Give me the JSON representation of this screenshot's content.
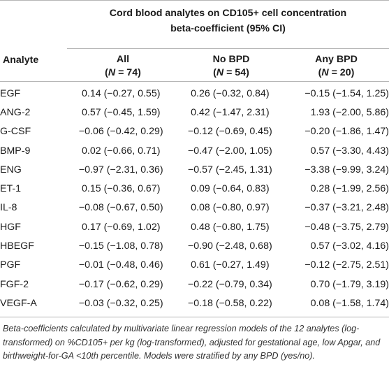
{
  "table": {
    "spanning_header_line1": "Cord blood analytes on CD105+ cell concentration",
    "spanning_header_line2": "beta-coefficient (95% CI)",
    "col_analyte": "Analyte",
    "groups": [
      {
        "label": "All",
        "n_prefix": "(",
        "n_var": "N",
        "n_rest": " = 74)"
      },
      {
        "label": "No BPD",
        "n_prefix": "(",
        "n_var": "N",
        "n_rest": " = 54)"
      },
      {
        "label": "Any BPD",
        "n_prefix": "(",
        "n_var": "N",
        "n_rest": " = 20)"
      }
    ],
    "rows": [
      {
        "analyte": "EGF",
        "all": "0.14 (−0.27, 0.55)",
        "no_bpd": "0.26 (−0.32, 0.84)",
        "any_bpd": "−0.15 (−1.54, 1.25)"
      },
      {
        "analyte": "ANG-2",
        "all": "0.57 (−0.45, 1.59)",
        "no_bpd": "0.42 (−1.47, 2.31)",
        "any_bpd": "1.93 (−2.00, 5.86)"
      },
      {
        "analyte": "G-CSF",
        "all": "−0.06 (−0.42, 0.29)",
        "no_bpd": "−0.12 (−0.69, 0.45)",
        "any_bpd": "−0.20 (−1.86, 1.47)"
      },
      {
        "analyte": "BMP-9",
        "all": "0.02 (−0.66, 0.71)",
        "no_bpd": "−0.47 (−2.00, 1.05)",
        "any_bpd": "0.57 (−3.30, 4.43)"
      },
      {
        "analyte": "ENG",
        "all": "−0.97 (−2.31, 0.36)",
        "no_bpd": "−0.57 (−2.45, 1.31)",
        "any_bpd": "−3.38 (−9.99, 3.24)"
      },
      {
        "analyte": "ET-1",
        "all": "0.15 (−0.36, 0.67)",
        "no_bpd": "0.09 (−0.64, 0.83)",
        "any_bpd": "0.28 (−1.99, 2.56)"
      },
      {
        "analyte": "IL-8",
        "all": "−0.08 (−0.67, 0.50)",
        "no_bpd": "0.08 (−0.80, 0.97)",
        "any_bpd": "−0.37 (−3.21, 2.48)"
      },
      {
        "analyte": "HGF",
        "all": "0.17 (−0.69, 1.02)",
        "no_bpd": "0.48 (−0.80, 1.75)",
        "any_bpd": "−0.48 (−3.75, 2.79)"
      },
      {
        "analyte": "HBEGF",
        "all": "−0.15 (−1.08, 0.78)",
        "no_bpd": "−0.90 (−2.48, 0.68)",
        "any_bpd": "0.57 (−3.02, 4.16)"
      },
      {
        "analyte": "PGF",
        "all": "−0.01 (−0.48, 0.46)",
        "no_bpd": "0.61 (−0.27, 1.49)",
        "any_bpd": "−0.12 (−2.75, 2.51)"
      },
      {
        "analyte": "FGF-2",
        "all": "−0.17 (−0.62, 0.29)",
        "no_bpd": "−0.22 (−0.79, 0.34)",
        "any_bpd": "0.70 (−1.79, 3.19)"
      },
      {
        "analyte": "VEGF-A",
        "all": "−0.03 (−0.32, 0.25)",
        "no_bpd": "−0.18 (−0.58, 0.22)",
        "any_bpd": "0.08 (−1.58, 1.74)"
      }
    ],
    "footnote": "Beta-coefficients calculated by multivariate linear regression models of the 12 analytes (log-transformed) on %CD105+ per kg (log-transformed), adjusted for gestational age, low Apgar, and birthweight-for-GA <10th percentile. Models were stratified by any BPD (yes/no)."
  }
}
